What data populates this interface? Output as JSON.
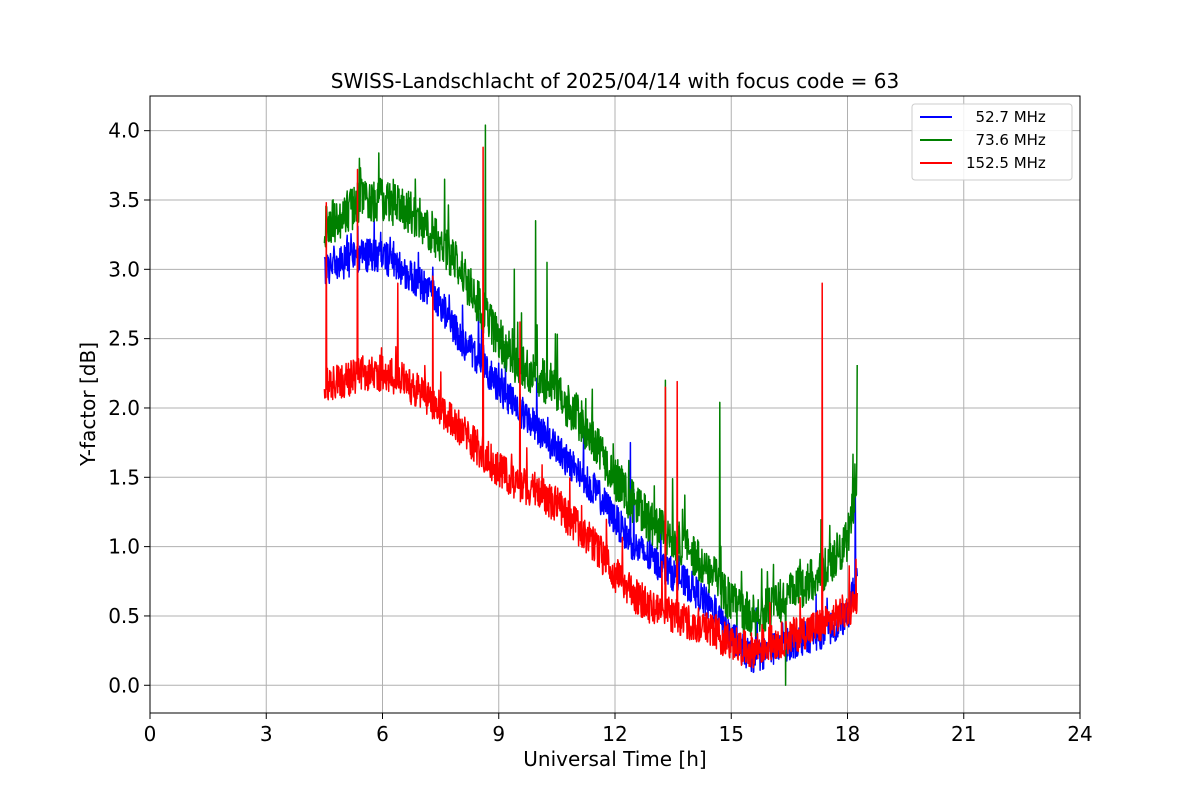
{
  "chart_data": {
    "type": "line",
    "title": "SWISS-Landschlacht of 2025/04/14 with focus code = 63",
    "xlabel": "Universal Time [h]",
    "ylabel": "Y-factor [dB]",
    "xlim": [
      0,
      24
    ],
    "ylim": [
      -0.2,
      4.25
    ],
    "xticks": [
      0,
      3,
      6,
      9,
      12,
      15,
      18,
      21,
      24
    ],
    "xtick_labels": [
      "0",
      "3",
      "6",
      "9",
      "12",
      "15",
      "18",
      "21",
      "24"
    ],
    "yticks": [
      0.0,
      0.5,
      1.0,
      1.5,
      2.0,
      2.5,
      3.0,
      3.5,
      4.0
    ],
    "ytick_labels": [
      "0.0",
      "0.5",
      "1.0",
      "1.5",
      "2.0",
      "2.5",
      "3.0",
      "3.5",
      "4.0"
    ],
    "grid": true,
    "legend_position": "top-right",
    "series": [
      {
        "name": "  52.7 MHz",
        "color": "#0000ff",
        "x": [
          4.5,
          5.0,
          5.5,
          6.0,
          6.5,
          7.0,
          7.5,
          8.0,
          8.5,
          9.0,
          9.5,
          10.0,
          10.5,
          11.0,
          11.5,
          12.0,
          12.5,
          13.0,
          13.5,
          14.0,
          14.5,
          15.0,
          15.5,
          16.0,
          16.5,
          17.0,
          17.5,
          18.0,
          18.25
        ],
        "y": [
          3.0,
          3.05,
          3.1,
          3.1,
          3.0,
          2.9,
          2.75,
          2.5,
          2.35,
          2.15,
          2.0,
          1.85,
          1.7,
          1.55,
          1.4,
          1.2,
          1.0,
          0.9,
          0.8,
          0.7,
          0.55,
          0.35,
          0.2,
          0.25,
          0.3,
          0.35,
          0.4,
          0.5,
          0.8
        ],
        "noise": 0.12,
        "spikes": [
          {
            "x": 12.4,
            "y": 1.75
          },
          {
            "x": 18.2,
            "y": 1.45
          }
        ]
      },
      {
        "name": "  73.6 MHz",
        "color": "#008000",
        "x": [
          4.5,
          5.0,
          5.5,
          6.0,
          6.5,
          7.0,
          7.5,
          8.0,
          8.5,
          9.0,
          9.5,
          10.0,
          10.5,
          11.0,
          11.5,
          12.0,
          12.5,
          13.0,
          13.5,
          14.0,
          14.5,
          15.0,
          15.5,
          16.0,
          16.5,
          17.0,
          17.5,
          18.0,
          18.25
        ],
        "y": [
          3.3,
          3.4,
          3.5,
          3.5,
          3.45,
          3.35,
          3.2,
          3.0,
          2.75,
          2.5,
          2.3,
          2.25,
          2.1,
          1.95,
          1.75,
          1.5,
          1.3,
          1.15,
          1.05,
          0.95,
          0.8,
          0.6,
          0.5,
          0.55,
          0.65,
          0.75,
          0.85,
          1.05,
          1.5
        ],
        "noise": 0.16,
        "spikes": [
          {
            "x": 5.4,
            "y": 3.8
          },
          {
            "x": 7.6,
            "y": 3.65
          },
          {
            "x": 8.65,
            "y": 4.04
          },
          {
            "x": 9.4,
            "y": 3.0
          },
          {
            "x": 9.95,
            "y": 3.35
          },
          {
            "x": 10.25,
            "y": 3.05
          },
          {
            "x": 13.3,
            "y": 2.2
          },
          {
            "x": 14.7,
            "y": 2.04
          },
          {
            "x": 16.4,
            "y": 0.0
          },
          {
            "x": 18.25,
            "y": 2.31
          }
        ]
      },
      {
        "name": "152.5 MHz",
        "color": "#ff0000",
        "x": [
          4.5,
          5.0,
          5.5,
          6.0,
          6.5,
          7.0,
          7.5,
          8.0,
          8.5,
          9.0,
          9.5,
          10.0,
          10.5,
          11.0,
          11.5,
          12.0,
          12.5,
          13.0,
          13.5,
          14.0,
          14.5,
          15.0,
          15.5,
          16.0,
          16.5,
          17.0,
          17.5,
          18.0,
          18.25
        ],
        "y": [
          2.15,
          2.2,
          2.25,
          2.25,
          2.2,
          2.1,
          2.0,
          1.85,
          1.7,
          1.55,
          1.45,
          1.4,
          1.3,
          1.15,
          1.0,
          0.8,
          0.65,
          0.55,
          0.5,
          0.45,
          0.4,
          0.3,
          0.25,
          0.3,
          0.35,
          0.4,
          0.45,
          0.55,
          0.6
        ],
        "noise": 0.13,
        "spikes": [
          {
            "x": 4.55,
            "y": 3.48
          },
          {
            "x": 5.35,
            "y": 3.72
          },
          {
            "x": 6.4,
            "y": 2.9
          },
          {
            "x": 7.3,
            "y": 2.95
          },
          {
            "x": 8.6,
            "y": 3.88
          },
          {
            "x": 9.55,
            "y": 2.62
          },
          {
            "x": 13.3,
            "y": 2.15
          },
          {
            "x": 13.6,
            "y": 2.19
          },
          {
            "x": 17.35,
            "y": 2.9
          }
        ]
      }
    ]
  }
}
